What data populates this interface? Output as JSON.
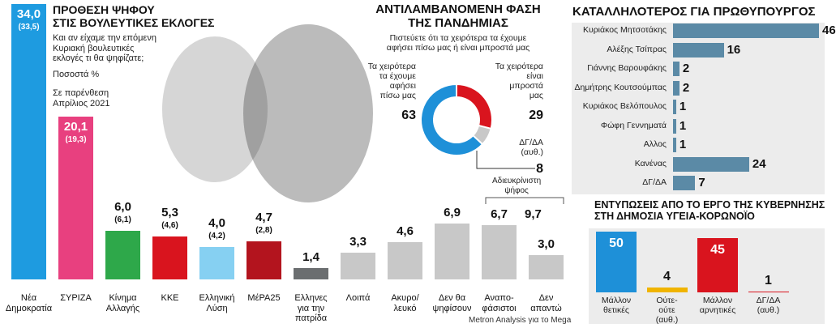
{
  "chart_data": [
    {
      "type": "bar",
      "title": "ΠΡΟΘΕΣΗ ΨΗΦΟΥ\nΣΤΙΣ ΒΟΥΛΕΥΤΙΚΕΣ ΕΚΛΟΓΕΣ",
      "subtitle": "Και αν είχαμε την επόμενη\nΚυριακή βουλευτικές\nεκλογές τι θα ψηφίζατε;",
      "unit_note": "Ποσοστά %",
      "note": "Σε παρένθεση\nΑπρίλιος 2021",
      "categories": [
        "Νέα\nΔημοκρατία",
        "ΣΥΡΙΖΑ",
        "Κίνημα\nΑλλαγής",
        "ΚΚΕ",
        "Ελληνική\nΛύση",
        "ΜέΡΑ25",
        "Ελληνες\nγια την πατρίδα",
        "Λοιπά",
        "Ακυρο/\nλευκό",
        "Δεν θα\nψηφίσουν",
        "Αναπο-\nφάσιστοι",
        "Δεν\nαπαντώ"
      ],
      "values": [
        34.0,
        20.1,
        6.0,
        5.3,
        4.0,
        4.7,
        1.4,
        3.3,
        4.6,
        6.9,
        6.7,
        3.0
      ],
      "value_labels": [
        "34,0",
        "20,1",
        "6,0",
        "5,3",
        "4,0",
        "4,7",
        "1,4",
        "3,3",
        "4,6",
        "6,9",
        "6,7",
        "3,0"
      ],
      "previous": [
        "(33,5)",
        "(19,3)",
        "(6,1)",
        "(4,6)",
        "(4,2)",
        "(2,8)",
        null,
        null,
        null,
        null,
        null,
        null
      ],
      "colors": [
        "#1e9be0",
        "#e8407f",
        "#2ea84a",
        "#d9141e",
        "#86d0f2",
        "#b3141e",
        "#6b6e70",
        "#c8c8c8",
        "#c8c8c8",
        "#c8c8c8",
        "#c8c8c8",
        "#c8c8c8"
      ],
      "annotation": {
        "label": "Αδιευκρίνιστη\nψήφος",
        "value": 9.7,
        "value_label": "9,7"
      }
    },
    {
      "type": "donut",
      "title": "ΑΝΤΙΛΑΜΒΑΝΟΜΕΝΗ ΦΑΣΗ\nΤΗΣ ΠΑΝΔΗΜΙΑΣ",
      "subtitle": "Πιστεύετε ότι τα χειρότερα τα έχουμε\nαφήσει πίσω μας ή είναι μπροστά μας",
      "categories": [
        "Τα χειρότερα\nτα έχουμε\nαφήσει\nπίσω μας",
        "Τα χειρότερα\nείναι\nμπροστά\nμας",
        "ΔΓ/ΔΑ\n(αυθ.)"
      ],
      "values": [
        63,
        29,
        8
      ],
      "colors": [
        "#1e90d8",
        "#d9141e",
        "#c8c8c8"
      ]
    },
    {
      "type": "bar",
      "orientation": "horizontal",
      "title": "ΚΑΤΑΛΛΗΛΟΤΕΡΟΣ ΓΙΑ ΠΡΩΘΥΠΟΥΡΓΟΣ",
      "categories": [
        "Κυριάκος Μητσοτάκης",
        "Αλέξης Τσίπρας",
        "Γιάννης Βαρουφάκης",
        "Δημήτρης Κουτσούμπας",
        "Κυριάκος Βελόπουλος",
        "Φώφη Γεννηματά",
        "Αλλος",
        "Κανένας",
        "ΔΓ/ΔΑ"
      ],
      "values": [
        46,
        16,
        2,
        2,
        1,
        1,
        1,
        24,
        7
      ],
      "color": "#5b8aa6"
    },
    {
      "type": "bar",
      "title": "ΕΝΤΥΠΩΣΕΙΣ ΑΠΟ ΤΟ ΕΡΓΟ ΤΗΣ ΚΥΒΕΡΝΗΣΗΣ\nΣΤΗ ΔΗΜΟΣΙΑ ΥΓΕΙΑ-ΚΟΡΩΝΟΪΟ",
      "categories": [
        "Μάλλον\nθετικές",
        "Ούτε-\nούτε\n(αυθ.)",
        "Μάλλον\nαρνητικές",
        "ΔΓ/ΔΑ\n(αυθ.)"
      ],
      "values": [
        50,
        4,
        45,
        1
      ],
      "colors": [
        "#1e90d8",
        "#f0b400",
        "#d9141e",
        "#d9141e"
      ]
    }
  ],
  "source": "Metron Analysis για το Mega"
}
